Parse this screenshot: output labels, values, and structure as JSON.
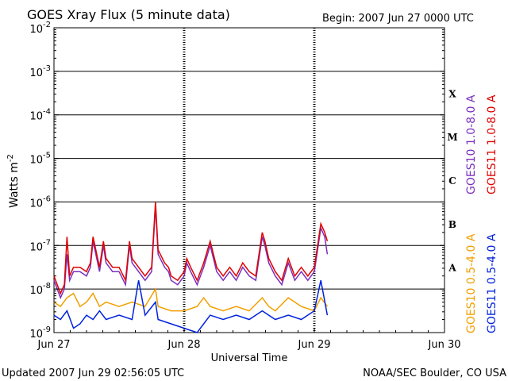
{
  "chart_data": {
    "type": "line",
    "title": "GOES Xray Flux (5 minute data)",
    "begin_label": "Begin:  2007 Jun 27 0000 UTC",
    "xlabel": "Universal Time",
    "ylabel": "Watts m",
    "ylabel_sup": "-2",
    "yscale": "log",
    "ylim_exp": [
      -9,
      -2
    ],
    "xlim_days": [
      0,
      3
    ],
    "x_ticks": [
      {
        "day": 0,
        "label": "Jun 27"
      },
      {
        "day": 1,
        "label": "Jun 28"
      },
      {
        "day": 2,
        "label": "Jun 29"
      },
      {
        "day": 3,
        "label": "Jun 30"
      }
    ],
    "y_ticks": [
      {
        "exp": -2,
        "label": "10",
        "sup": "-2"
      },
      {
        "exp": -3,
        "label": "10",
        "sup": "-3"
      },
      {
        "exp": -4,
        "label": "10",
        "sup": "-4"
      },
      {
        "exp": -5,
        "label": "10",
        "sup": "-5"
      },
      {
        "exp": -6,
        "label": "10",
        "sup": "-6"
      },
      {
        "exp": -7,
        "label": "10",
        "sup": "-7"
      },
      {
        "exp": -8,
        "label": "10",
        "sup": "-8"
      },
      {
        "exp": -9,
        "label": "10",
        "sup": "-9"
      }
    ],
    "flare_classes": [
      {
        "label": "X",
        "exp_from": -4,
        "exp_to": -3
      },
      {
        "label": "M",
        "exp_from": -5,
        "exp_to": -4
      },
      {
        "label": "C",
        "exp_from": -6,
        "exp_to": -5
      },
      {
        "label": "B",
        "exp_from": -7,
        "exp_to": -6
      },
      {
        "label": "A",
        "exp_from": -8,
        "exp_to": -7
      }
    ],
    "legend": [
      {
        "label": "GOES10 1.0-8.0 A",
        "color": "#7b2fbf"
      },
      {
        "label": "GOES11 1.0-8.0 A",
        "color": "#e00000"
      },
      {
        "label": "GOES10 0.5-4.0 A",
        "color": "#f0a000"
      },
      {
        "label": "GOES11 0.5-4.0 A",
        "color": "#0022dd"
      }
    ],
    "series": [
      {
        "name": "GOES10 1.0-8.0 A",
        "color": "#7b2fbf",
        "x": [
          0.0,
          0.05,
          0.08,
          0.1,
          0.12,
          0.15,
          0.2,
          0.25,
          0.28,
          0.3,
          0.35,
          0.38,
          0.4,
          0.45,
          0.5,
          0.55,
          0.58,
          0.6,
          0.65,
          0.7,
          0.75,
          0.78,
          0.8,
          0.85,
          0.88,
          0.9,
          0.95,
          1.0,
          1.02,
          1.05,
          1.1,
          1.15,
          1.2,
          1.25,
          1.3,
          1.35,
          1.4,
          1.45,
          1.5,
          1.55,
          1.6,
          1.62,
          1.65,
          1.7,
          1.75,
          1.8,
          1.85,
          1.9,
          1.95,
          2.0,
          2.02,
          2.05,
          2.08,
          2.1
        ],
        "y_exp": [
          -7.8,
          -8.2,
          -8.0,
          -7.2,
          -7.8,
          -7.6,
          -7.6,
          -7.7,
          -7.5,
          -6.9,
          -7.6,
          -7.0,
          -7.4,
          -7.6,
          -7.6,
          -7.9,
          -7.0,
          -7.4,
          -7.6,
          -7.8,
          -7.6,
          -6.1,
          -7.2,
          -7.5,
          -7.6,
          -7.8,
          -7.9,
          -7.7,
          -7.4,
          -7.6,
          -7.9,
          -7.5,
          -7.0,
          -7.6,
          -7.8,
          -7.6,
          -7.8,
          -7.5,
          -7.7,
          -7.8,
          -6.8,
          -7.0,
          -7.4,
          -7.7,
          -7.9,
          -7.4,
          -7.8,
          -7.6,
          -7.8,
          -7.6,
          -7.2,
          -6.6,
          -6.8,
          -7.2
        ]
      },
      {
        "name": "GOES11 1.0-8.0 A",
        "color": "#e00000",
        "x": [
          0.0,
          0.05,
          0.08,
          0.1,
          0.12,
          0.15,
          0.2,
          0.25,
          0.28,
          0.3,
          0.35,
          0.38,
          0.4,
          0.45,
          0.5,
          0.55,
          0.58,
          0.6,
          0.65,
          0.7,
          0.75,
          0.78,
          0.8,
          0.85,
          0.88,
          0.9,
          0.95,
          1.0,
          1.02,
          1.05,
          1.1,
          1.15,
          1.2,
          1.25,
          1.3,
          1.35,
          1.4,
          1.45,
          1.5,
          1.55,
          1.6,
          1.62,
          1.65,
          1.7,
          1.75,
          1.8,
          1.85,
          1.9,
          1.95,
          2.0,
          2.02,
          2.05,
          2.08,
          2.1
        ],
        "y_exp": [
          -7.7,
          -8.1,
          -7.9,
          -6.8,
          -7.7,
          -7.5,
          -7.5,
          -7.6,
          -7.4,
          -6.8,
          -7.5,
          -6.9,
          -7.3,
          -7.5,
          -7.5,
          -7.8,
          -6.9,
          -7.3,
          -7.5,
          -7.7,
          -7.5,
          -6.0,
          -7.1,
          -7.4,
          -7.5,
          -7.7,
          -7.8,
          -7.6,
          -7.3,
          -7.5,
          -7.8,
          -7.4,
          -6.9,
          -7.5,
          -7.7,
          -7.5,
          -7.7,
          -7.4,
          -7.6,
          -7.7,
          -6.7,
          -6.9,
          -7.3,
          -7.6,
          -7.8,
          -7.3,
          -7.7,
          -7.5,
          -7.7,
          -7.5,
          -7.1,
          -6.5,
          -6.7,
          -6.9
        ]
      },
      {
        "name": "GOES10 0.5-4.0 A",
        "color": "#f0a000",
        "x": [
          0.0,
          0.05,
          0.1,
          0.15,
          0.2,
          0.25,
          0.3,
          0.35,
          0.4,
          0.5,
          0.6,
          0.7,
          0.78,
          0.8,
          0.9,
          1.0,
          1.1,
          1.15,
          1.2,
          1.3,
          1.4,
          1.5,
          1.6,
          1.65,
          1.7,
          1.8,
          1.9,
          2.0,
          2.05,
          2.1
        ],
        "y_exp": [
          -8.3,
          -8.4,
          -8.2,
          -8.1,
          -8.4,
          -8.3,
          -8.1,
          -8.4,
          -8.3,
          -8.4,
          -8.3,
          -8.4,
          -8.0,
          -8.4,
          -8.5,
          -8.5,
          -8.4,
          -8.2,
          -8.4,
          -8.5,
          -8.4,
          -8.5,
          -8.2,
          -8.4,
          -8.5,
          -8.2,
          -8.4,
          -8.5,
          -8.2,
          -8.4
        ]
      },
      {
        "name": "GOES11 0.5-4.0 A",
        "color": "#0022dd",
        "x": [
          0.0,
          0.05,
          0.1,
          0.15,
          0.2,
          0.25,
          0.3,
          0.35,
          0.4,
          0.5,
          0.6,
          0.65,
          0.7,
          0.78,
          0.8,
          0.9,
          1.0,
          1.1,
          1.15,
          1.2,
          1.3,
          1.4,
          1.5,
          1.6,
          1.65,
          1.7,
          1.8,
          1.9,
          2.0,
          2.05,
          2.1
        ],
        "y_exp": [
          -8.6,
          -8.7,
          -8.5,
          -8.9,
          -8.8,
          -8.6,
          -8.7,
          -8.5,
          -8.7,
          -8.6,
          -8.7,
          -7.8,
          -8.6,
          -8.3,
          -8.7,
          -8.8,
          -8.9,
          -9.1,
          -8.8,
          -8.6,
          -8.7,
          -8.6,
          -8.7,
          -8.5,
          -8.6,
          -8.7,
          -8.6,
          -8.7,
          -8.5,
          -7.8,
          -8.6
        ]
      }
    ]
  },
  "footer": {
    "updated": "Updated 2007 Jun 29 02:56:05 UTC",
    "source": "NOAA/SEC Boulder, CO USA"
  }
}
